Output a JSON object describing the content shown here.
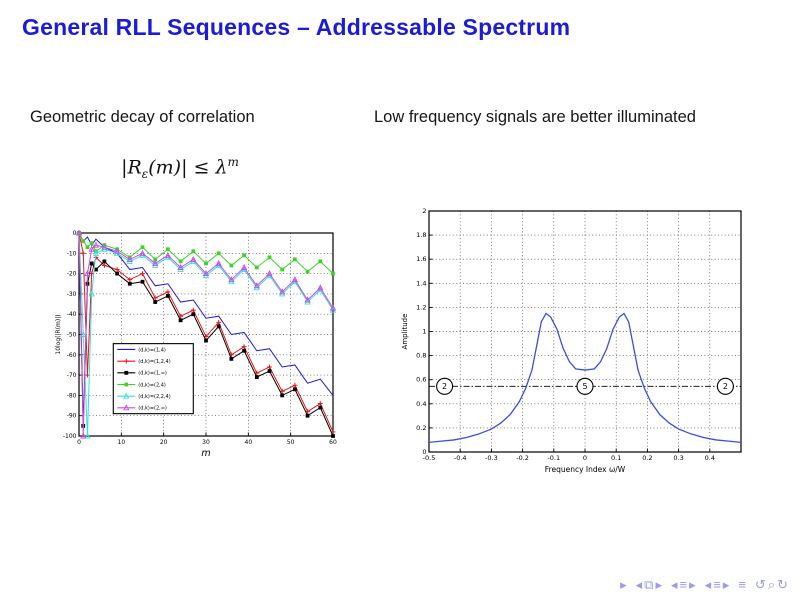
{
  "slide": {
    "title": "General RLL Sequences – Addressable Spectrum",
    "title_color": "#1b1bdc",
    "left_heading": "Geometric decay of correlation",
    "right_heading": "Low frequency signals are better illuminated",
    "formula": {
      "lhs": "|R",
      "lhs_sub": "ε",
      "lhs_tail": "(m)|",
      "rel": " ≤ ",
      "rhs": "λ",
      "rhs_sup": "m"
    }
  },
  "chart_data": [
    {
      "type": "line",
      "title": "",
      "xlabel": "m",
      "ylabel": "10log(|R(m)|)",
      "xlim": [
        0,
        60
      ],
      "ylim": [
        -100,
        0
      ],
      "xticks": [
        "0",
        "10",
        "20",
        "30",
        "40",
        "50",
        "60"
      ],
      "yticks": [
        "0",
        "-10",
        "-20",
        "-30",
        "-40",
        "-50",
        "-60",
        "-70",
        "-80",
        "-90",
        "-100"
      ],
      "grid": true,
      "legend": true,
      "legend_position": "left-center-inside",
      "x": [
        0,
        1,
        2,
        3,
        4,
        6,
        9,
        12,
        15,
        18,
        21,
        24,
        27,
        30,
        33,
        36,
        39,
        42,
        45,
        48,
        51,
        54,
        57,
        60
      ],
      "series": [
        {
          "name": "(d,k)=(1,4)",
          "color": "#1a1aee",
          "marker": "none",
          "values": [
            0,
            -4,
            -2,
            -6,
            -3,
            -7,
            -10,
            -18,
            -17,
            -26,
            -25,
            -34,
            -33,
            -42,
            -41,
            -50,
            -49,
            -58,
            -57,
            -66,
            -65,
            -74,
            -72,
            -80
          ]
        },
        {
          "name": "(d,k)=(1,2,4)",
          "color": "#e81717",
          "marker": "plus",
          "values": [
            0,
            -10,
            -70,
            -20,
            -12,
            -16,
            -18,
            -23,
            -20,
            -32,
            -29,
            -41,
            -38,
            -51,
            -44,
            -60,
            -56,
            -69,
            -66,
            -78,
            -75,
            -88,
            -84,
            -98
          ]
        },
        {
          "name": "(d,k)=(1,∞)",
          "color": "#000000",
          "marker": "square",
          "values": [
            0,
            -95,
            -25,
            -15,
            -18,
            -14,
            -20,
            -25,
            -24,
            -34,
            -31,
            -43,
            -40,
            -53,
            -46,
            -62,
            -58,
            -71,
            -68,
            -80,
            -77,
            -90,
            -86,
            -100
          ]
        },
        {
          "name": "(d,k)=(2,4)",
          "color": "#3ed32a",
          "marker": "square",
          "values": [
            0,
            -4,
            -7,
            -5,
            -9,
            -6,
            -8,
            -12,
            -7,
            -13,
            -8,
            -14,
            -9,
            -15,
            -10,
            -16,
            -11,
            -17,
            -12,
            -18,
            -13,
            -19,
            -14,
            -20
          ]
        },
        {
          "name": "(d,k)=(2,2,4)",
          "color": "#35e0e0",
          "marker": "triangle",
          "values": [
            0,
            -50,
            -100,
            -30,
            -10,
            -8,
            -10,
            -14,
            -11,
            -16,
            -12,
            -18,
            -14,
            -21,
            -16,
            -24,
            -18,
            -27,
            -21,
            -30,
            -24,
            -34,
            -28,
            -38
          ]
        },
        {
          "name": "(d,k)=(2,∞)",
          "color": "#cb4ae8",
          "marker": "triangle",
          "values": [
            0,
            -100,
            -20,
            -8,
            -6,
            -7,
            -9,
            -13,
            -10,
            -15,
            -11,
            -17,
            -13,
            -20,
            -15,
            -23,
            -17,
            -26,
            -20,
            -29,
            -23,
            -33,
            -27,
            -37
          ]
        }
      ]
    },
    {
      "type": "line",
      "title": "",
      "xlabel": "Frequency Index ω/W",
      "ylabel": "Amplitude",
      "xlim": [
        -0.5,
        0.5
      ],
      "ylim": [
        0,
        2
      ],
      "xticks": [
        "-0.5",
        "-0.4",
        "-0.3",
        "-0.2",
        "-0.1",
        "0",
        "0.1",
        "0.2",
        "0.3",
        "0.4"
      ],
      "yticks": [
        "0",
        "0.2",
        "0.4",
        "0.6",
        "0.8",
        "1",
        "1.2",
        "1.4",
        "1.6",
        "1.8",
        "2"
      ],
      "grid": true,
      "legend": false,
      "hline_y": 0.545,
      "series": [
        {
          "name": "spectrum",
          "color": "#3a4fe0",
          "marker": "none",
          "x": [
            -0.5,
            -0.46,
            -0.42,
            -0.38,
            -0.34,
            -0.3,
            -0.27,
            -0.24,
            -0.21,
            -0.19,
            -0.17,
            -0.155,
            -0.14,
            -0.125,
            -0.11,
            -0.09,
            -0.07,
            -0.05,
            -0.03,
            0,
            0.03,
            0.05,
            0.07,
            0.09,
            0.11,
            0.125,
            0.14,
            0.155,
            0.17,
            0.19,
            0.21,
            0.24,
            0.27,
            0.3,
            0.34,
            0.38,
            0.42,
            0.46,
            0.5
          ],
          "y": [
            0.08,
            0.09,
            0.1,
            0.12,
            0.15,
            0.19,
            0.24,
            0.31,
            0.42,
            0.53,
            0.68,
            0.88,
            1.08,
            1.15,
            1.12,
            1.02,
            0.86,
            0.75,
            0.69,
            0.68,
            0.69,
            0.75,
            0.86,
            1.02,
            1.12,
            1.15,
            1.08,
            0.88,
            0.68,
            0.53,
            0.42,
            0.31,
            0.24,
            0.19,
            0.15,
            0.12,
            0.1,
            0.09,
            0.08
          ]
        }
      ],
      "annotations": [
        {
          "label": "2",
          "x": -0.45,
          "y": 0.545
        },
        {
          "label": "5",
          "x": 0.0,
          "y": 0.545
        },
        {
          "label": "2",
          "x": 0.45,
          "y": 0.545
        }
      ]
    }
  ],
  "nav": {
    "color": "#9a9af0",
    "items": [
      {
        "glyph": "▸",
        "name": "slide-next",
        "gap": false
      },
      {
        "glyph": "◂",
        "name": "frame-prev",
        "gap": true
      },
      {
        "glyph": "⧉",
        "name": "frame",
        "gap": false
      },
      {
        "glyph": "▸",
        "name": "frame-next",
        "gap": false
      },
      {
        "glyph": "◂",
        "name": "subsection-prev",
        "gap": true
      },
      {
        "glyph": "≡",
        "name": "subsection",
        "gap": false
      },
      {
        "glyph": "▸",
        "name": "subsection-next",
        "gap": false
      },
      {
        "glyph": "◂",
        "name": "section-prev",
        "gap": true
      },
      {
        "glyph": "≡",
        "name": "section",
        "gap": false
      },
      {
        "glyph": "▸",
        "name": "section-next",
        "gap": false
      },
      {
        "glyph": "≡",
        "name": "document",
        "gap": true
      },
      {
        "glyph": "↺",
        "name": "back",
        "gap": true
      },
      {
        "glyph": "⌕",
        "name": "find",
        "gap": false
      },
      {
        "glyph": "↻",
        "name": "forward",
        "gap": false
      }
    ]
  }
}
